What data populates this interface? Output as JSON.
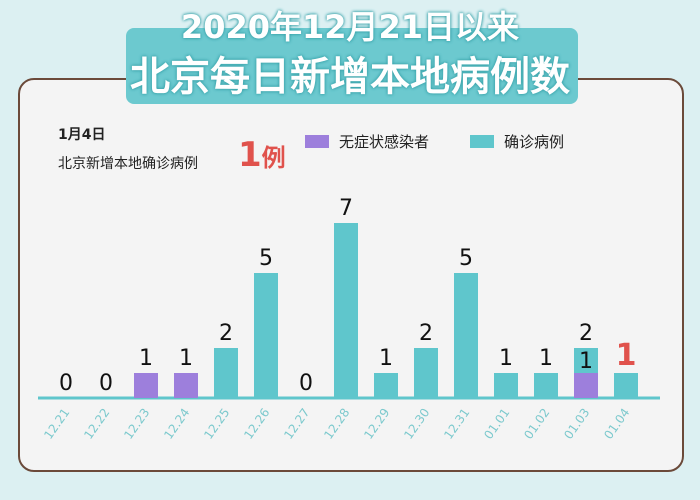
{
  "title_line1": "2020年12月21日以来",
  "title_line2": "北京每日新增本地病例数",
  "highlight": {
    "date": "1月4日",
    "text": "北京新增本地确诊病例",
    "value": "1",
    "unit": "例"
  },
  "chart_data": {
    "type": "bar",
    "stacked": true,
    "categories": [
      "12.21",
      "12.22",
      "12.23",
      "12.24",
      "12.25",
      "12.26",
      "12.27",
      "12.28",
      "12.29",
      "12.30",
      "12.31",
      "01.01",
      "01.02",
      "01.03",
      "01.04"
    ],
    "series": [
      {
        "name": "无症状感染者",
        "color": "#9d7fdc",
        "values": [
          0,
          0,
          1,
          1,
          0,
          0,
          0,
          0,
          0,
          0,
          0,
          0,
          0,
          1,
          0
        ]
      },
      {
        "name": "确诊病例",
        "color": "#5fc6cc",
        "values": [
          0,
          0,
          0,
          0,
          2,
          5,
          0,
          7,
          1,
          2,
          5,
          1,
          1,
          1,
          1
        ]
      }
    ],
    "data_labels": [
      "0",
      "0",
      "1",
      "1",
      "2",
      "5",
      "0",
      "7",
      "1",
      "2",
      "5",
      "1",
      "1",
      "2",
      "1"
    ],
    "extra_labels": [
      {
        "category": "01.03",
        "text": "1"
      }
    ],
    "highlight_color": "#e0524c",
    "ylim": [
      0,
      8
    ],
    "legend": "top"
  }
}
